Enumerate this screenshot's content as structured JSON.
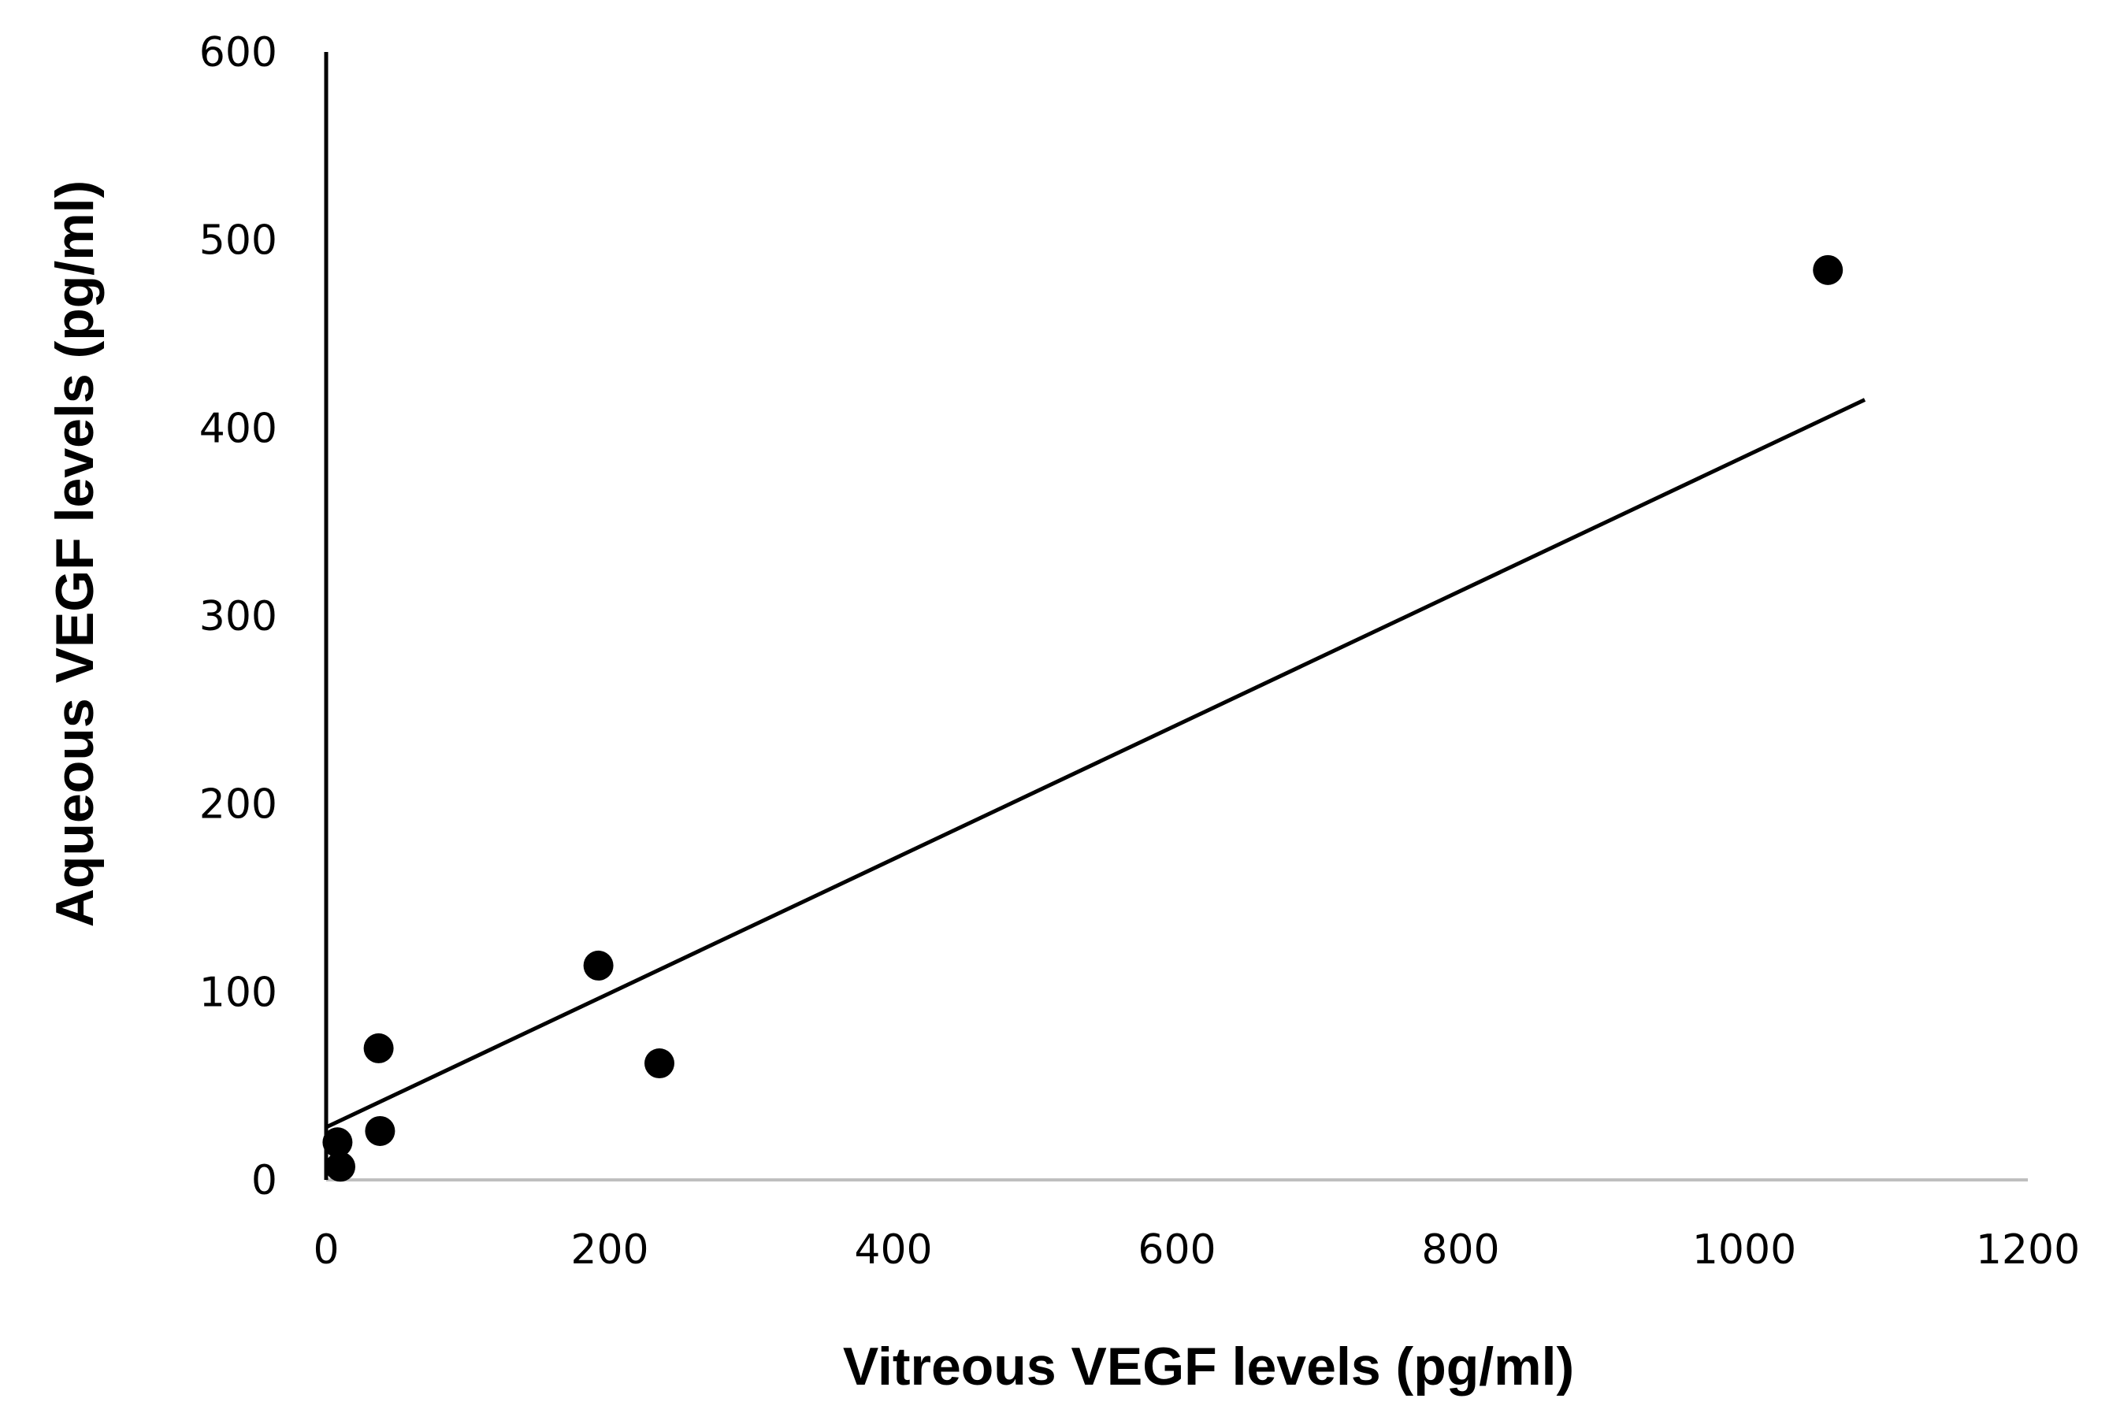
{
  "chart_data": {
    "type": "scatter",
    "title": "",
    "xlabel": "Vitreous VEGF levels (pg/ml)",
    "ylabel": "Aqueous VEGF levels (pg/ml)",
    "xlim": [
      0,
      1200
    ],
    "ylim": [
      0,
      600
    ],
    "xticks": [
      0,
      200,
      400,
      600,
      800,
      1000,
      1200
    ],
    "yticks": [
      0,
      100,
      200,
      300,
      400,
      500,
      600
    ],
    "grid": false,
    "legend": "none",
    "point_color": "#000000",
    "series": [
      {
        "points": [
          {
            "x": 8,
            "y": 20
          },
          {
            "x": 10,
            "y": 7
          },
          {
            "x": 37,
            "y": 70
          },
          {
            "x": 38,
            "y": 26
          },
          {
            "x": 192,
            "y": 114
          },
          {
            "x": 235,
            "y": 62
          },
          {
            "x": 1059,
            "y": 484
          }
        ]
      }
    ],
    "trendline": {
      "x": [
        0,
        1085
      ],
      "y": [
        28,
        415
      ]
    }
  }
}
